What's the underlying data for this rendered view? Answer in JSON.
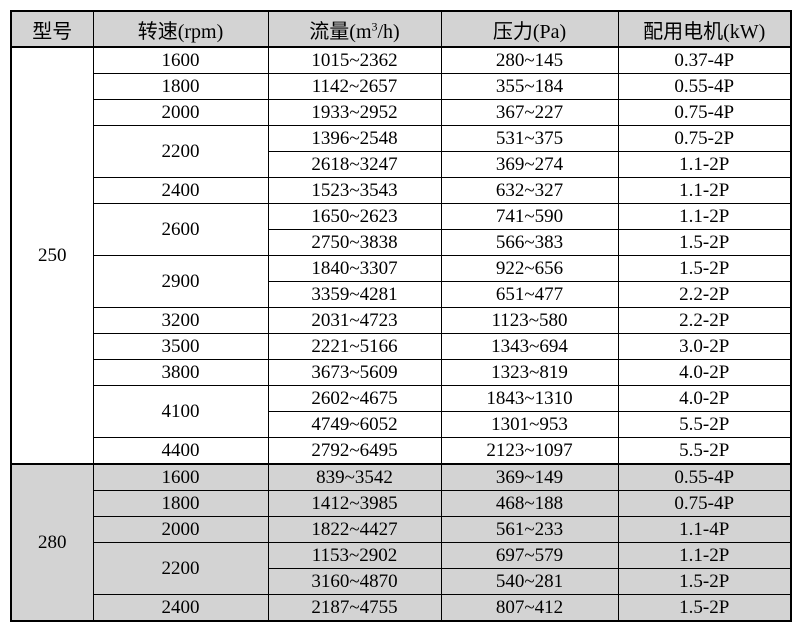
{
  "table": {
    "header": {
      "model": "型号",
      "speed": "转速(rpm)",
      "flow_prefix": "流量(m",
      "flow_sup": "3",
      "flow_suffix": "/h)",
      "pressure": "压力(Pa)",
      "motor": "配用电机(kW)"
    },
    "colors": {
      "header_bg": "#d3d3d3",
      "shaded_bg": "#d3d3d3",
      "border": "#000000"
    },
    "groups": [
      {
        "model": "250",
        "shaded": false,
        "rows": [
          {
            "speed": "1600",
            "entries": [
              {
                "flow": "1015~2362",
                "pressure": "280~145",
                "motor": "0.37-4P"
              }
            ]
          },
          {
            "speed": "1800",
            "entries": [
              {
                "flow": "1142~2657",
                "pressure": "355~184",
                "motor": "0.55-4P"
              }
            ]
          },
          {
            "speed": "2000",
            "entries": [
              {
                "flow": "1933~2952",
                "pressure": "367~227",
                "motor": "0.75-4P"
              }
            ]
          },
          {
            "speed": "2200",
            "entries": [
              {
                "flow": "1396~2548",
                "pressure": "531~375",
                "motor": "0.75-2P"
              },
              {
                "flow": "2618~3247",
                "pressure": "369~274",
                "motor": "1.1-2P"
              }
            ]
          },
          {
            "speed": "2400",
            "entries": [
              {
                "flow": "1523~3543",
                "pressure": "632~327",
                "motor": "1.1-2P"
              }
            ]
          },
          {
            "speed": "2600",
            "entries": [
              {
                "flow": "1650~2623",
                "pressure": "741~590",
                "motor": "1.1-2P"
              },
              {
                "flow": "2750~3838",
                "pressure": "566~383",
                "motor": "1.5-2P"
              }
            ]
          },
          {
            "speed": "2900",
            "entries": [
              {
                "flow": "1840~3307",
                "pressure": "922~656",
                "motor": "1.5-2P"
              },
              {
                "flow": "3359~4281",
                "pressure": "651~477",
                "motor": "2.2-2P"
              }
            ]
          },
          {
            "speed": "3200",
            "entries": [
              {
                "flow": "2031~4723",
                "pressure": "1123~580",
                "motor": "2.2-2P"
              }
            ]
          },
          {
            "speed": "3500",
            "entries": [
              {
                "flow": "2221~5166",
                "pressure": "1343~694",
                "motor": "3.0-2P"
              }
            ]
          },
          {
            "speed": "3800",
            "entries": [
              {
                "flow": "3673~5609",
                "pressure": "1323~819",
                "motor": "4.0-2P"
              }
            ]
          },
          {
            "speed": "4100",
            "entries": [
              {
                "flow": "2602~4675",
                "pressure": "1843~1310",
                "motor": "4.0-2P"
              },
              {
                "flow": "4749~6052",
                "pressure": "1301~953",
                "motor": "5.5-2P"
              }
            ]
          },
          {
            "speed": "4400",
            "entries": [
              {
                "flow": "2792~6495",
                "pressure": "2123~1097",
                "motor": "5.5-2P"
              }
            ]
          }
        ]
      },
      {
        "model": "280",
        "shaded": true,
        "rows": [
          {
            "speed": "1600",
            "entries": [
              {
                "flow": "839~3542",
                "pressure": "369~149",
                "motor": "0.55-4P"
              }
            ]
          },
          {
            "speed": "1800",
            "entries": [
              {
                "flow": "1412~3985",
                "pressure": "468~188",
                "motor": "0.75-4P"
              }
            ]
          },
          {
            "speed": "2000",
            "entries": [
              {
                "flow": "1822~4427",
                "pressure": "561~233",
                "motor": "1.1-4P"
              }
            ]
          },
          {
            "speed": "2200",
            "entries": [
              {
                "flow": "1153~2902",
                "pressure": "697~579",
                "motor": "1.1-2P"
              },
              {
                "flow": "3160~4870",
                "pressure": "540~281",
                "motor": "1.5-2P"
              }
            ]
          },
          {
            "speed": "2400",
            "entries": [
              {
                "flow": "2187~4755",
                "pressure": "807~412",
                "motor": "1.5-2P"
              }
            ]
          }
        ]
      }
    ]
  }
}
